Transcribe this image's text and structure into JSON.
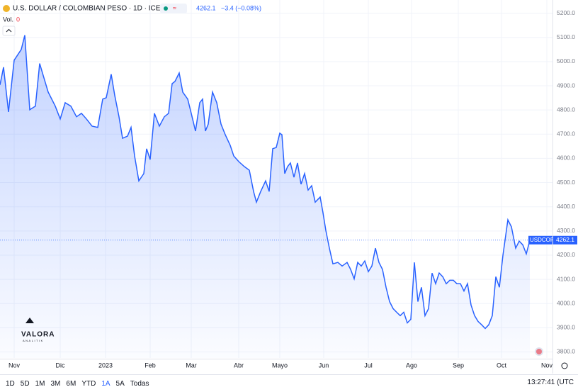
{
  "chart_data": {
    "type": "area",
    "title": "U.S. DOLLAR / COLOMBIAN PESO · 1D · ICE",
    "last_change": "−3.4 (−0.08%)",
    "volume_label": "Vol.",
    "volume": 0,
    "symbol": "USDCOP",
    "x": [
      0,
      5,
      12,
      20,
      30,
      35,
      42,
      50,
      56,
      62,
      68,
      78,
      85,
      92,
      100,
      108,
      115,
      122,
      130,
      138,
      145,
      150,
      157,
      162,
      168,
      173,
      180,
      185,
      190,
      196,
      203,
      207,
      212,
      218,
      225,
      232,
      238,
      243,
      247,
      253,
      258,
      265,
      270,
      276,
      282,
      286,
      290,
      294,
      300,
      306,
      312,
      318,
      325,
      330,
      337,
      345,
      352,
      358,
      362,
      368,
      375,
      380,
      385,
      390,
      395,
      398,
      402,
      406,
      410,
      415,
      420,
      425,
      430,
      435,
      440,
      445,
      452,
      456,
      460,
      465,
      470,
      477,
      483,
      490,
      495,
      500,
      505,
      510,
      515,
      520,
      525,
      530,
      535,
      540,
      545,
      550,
      555,
      560,
      565,
      570,
      575,
      580,
      585,
      590,
      595,
      600,
      605,
      610,
      615,
      620,
      625,
      630,
      635,
      640,
      645,
      650,
      655,
      660,
      665,
      670,
      675,
      680,
      685,
      690,
      695,
      700,
      705,
      710,
      717,
      722,
      728,
      733,
      738,
      743,
      748
    ],
    "series": [
      {
        "name": "USDCOP",
        "color": "#2962ff",
        "values": [
          4904,
          4977,
          4792,
          5006,
          5050,
          5109,
          4801,
          4816,
          4992,
          4933,
          4874,
          4816,
          4763,
          4830,
          4816,
          4772,
          4786,
          4763,
          4733,
          4728,
          4845,
          4851,
          4948,
          4860,
          4772,
          4683,
          4692,
          4728,
          4610,
          4507,
          4537,
          4640,
          4595,
          4786,
          4733,
          4772,
          4786,
          4909,
          4918,
          4953,
          4874,
          4845,
          4786,
          4713,
          4830,
          4845,
          4713,
          4742,
          4874,
          4830,
          4742,
          4698,
          4654,
          4610,
          4587,
          4566,
          4551,
          4463,
          4419,
          4463,
          4507,
          4463,
          4640,
          4645,
          4704,
          4698,
          4537,
          4566,
          4581,
          4522,
          4581,
          4493,
          4537,
          4469,
          4487,
          4419,
          4440,
          4375,
          4302,
          4229,
          4164,
          4170,
          4155,
          4170,
          4141,
          4102,
          4170,
          4155,
          4176,
          4132,
          4155,
          4229,
          4170,
          4141,
          4067,
          4008,
          3979,
          3964,
          3950,
          3964,
          3920,
          3935,
          4170,
          4008,
          4067,
          3950,
          3979,
          4126,
          4082,
          4126,
          4111,
          4082,
          4096,
          4096,
          4082,
          4082,
          4052,
          4082,
          3994,
          3950,
          3926,
          3912,
          3897,
          3912,
          3950,
          4111,
          4067,
          4199,
          4346,
          4317,
          4229,
          4258,
          4243,
          4205,
          4262.1
        ]
      }
    ],
    "xlim": [
      0,
      780
    ],
    "xticks": [
      {
        "value": 20,
        "label": "Nov"
      },
      {
        "value": 85,
        "label": "Dic"
      },
      {
        "value": 149,
        "label": "2023"
      },
      {
        "value": 212,
        "label": "Feb"
      },
      {
        "value": 270,
        "label": "Mar"
      },
      {
        "value": 337,
        "label": "Abr"
      },
      {
        "value": 395,
        "label": "Mayo"
      },
      {
        "value": 457,
        "label": "Jun"
      },
      {
        "value": 520,
        "label": "Jul"
      },
      {
        "value": 581,
        "label": "Ago"
      },
      {
        "value": 647,
        "label": "Sep"
      },
      {
        "value": 708,
        "label": "Oct"
      },
      {
        "value": 772,
        "label": "Nov"
      }
    ],
    "ylim": [
      3775,
      5240
    ],
    "yticks": [
      {
        "value": 3800,
        "label": "3800.0"
      },
      {
        "value": 3900,
        "label": "3900.0"
      },
      {
        "value": 4000,
        "label": "4000.0"
      },
      {
        "value": 4100,
        "label": "4100.0"
      },
      {
        "value": 4200,
        "label": "4200.0"
      },
      {
        "value": 4300,
        "label": "4300.0"
      },
      {
        "value": 4400,
        "label": "4400.0"
      },
      {
        "value": 4500,
        "label": "4500.0"
      },
      {
        "value": 4600,
        "label": "4600.0"
      },
      {
        "value": 4700,
        "label": "4700.0"
      },
      {
        "value": 4800,
        "label": "4800.0"
      },
      {
        "value": 4900,
        "label": "4900.0"
      },
      {
        "value": 5000,
        "label": "5000.0"
      },
      {
        "value": 5100,
        "label": "5100.0"
      },
      {
        "value": 5200,
        "label": "5200.0"
      }
    ],
    "grid": true
  },
  "watermark": {
    "name": "VALORA",
    "tagline": "ANALITIK"
  },
  "toolbar": {
    "ranges": [
      "1D",
      "5D",
      "1M",
      "3M",
      "6M",
      "YTD",
      "1A",
      "5A",
      "Todas"
    ],
    "clock": "13:27:41 (UTC"
  }
}
